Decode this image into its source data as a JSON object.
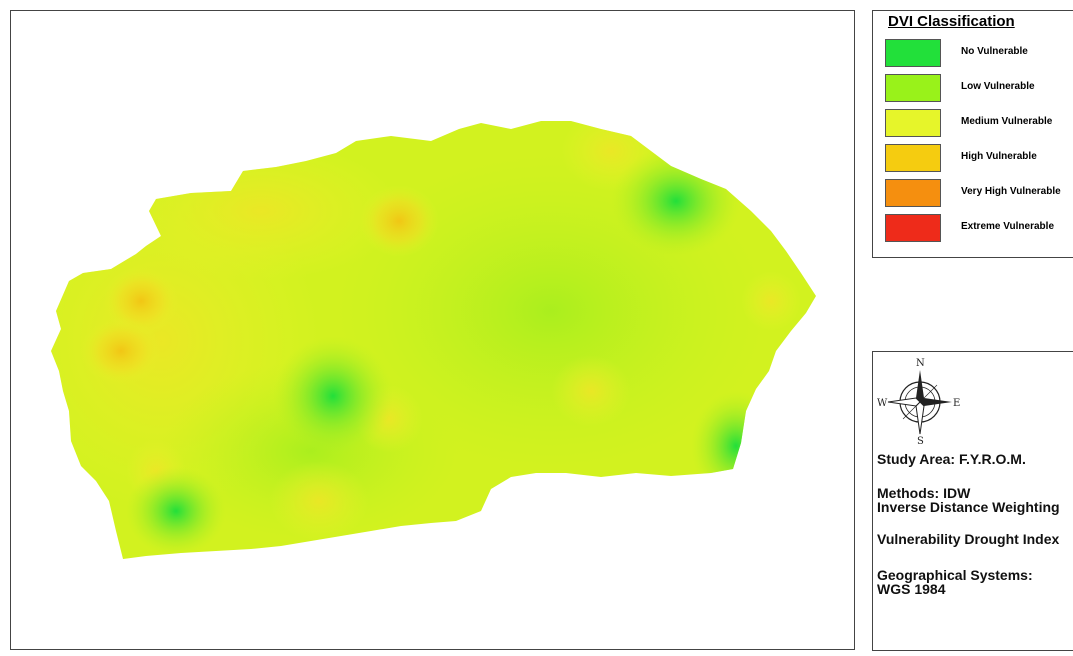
{
  "legend": {
    "title": "DVI Classification",
    "items": [
      {
        "label": "No Vulnerable",
        "color": "#22e03a"
      },
      {
        "label": "Low Vulnerable",
        "color": "#99f21a"
      },
      {
        "label": "Medium Vulnerable",
        "color": "#e6f52a"
      },
      {
        "label": "High Vulnerable",
        "color": "#f5cc10"
      },
      {
        "label": "Very High Vulnerable",
        "color": "#f58f0f"
      },
      {
        "label": "Extreme Vulnerable",
        "color": "#ee2b1a"
      }
    ]
  },
  "compass": {
    "n": "N",
    "s": "S",
    "e": "E",
    "w": "W"
  },
  "info": {
    "study_area": "Study Area: F.Y.R.O.M.",
    "methods_line1": "Methods: IDW",
    "methods_line2": "Inverse Distance Weighting",
    "index": "Vulnerability Drought Index",
    "geo_line1": "Geographical Systems:",
    "geo_line2": "WGS 1984"
  }
}
